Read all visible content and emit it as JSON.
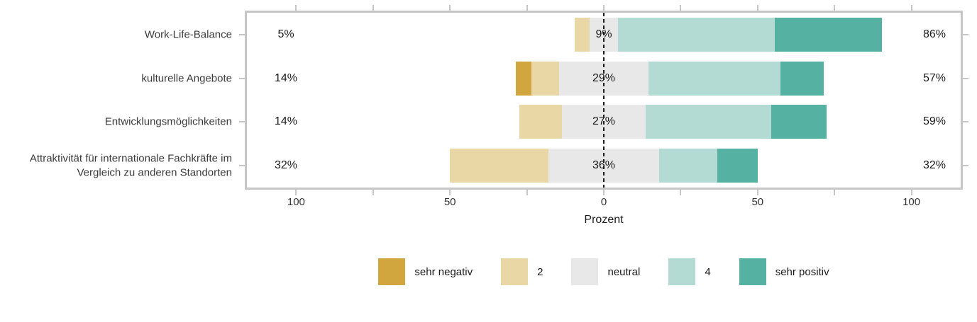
{
  "chart_data": {
    "type": "diverging_stacked_bar",
    "title": "",
    "xlabel": "Prozent",
    "xlim": [
      -116,
      116
    ],
    "x_ticks": [
      -100,
      -50,
      0,
      50,
      100
    ],
    "x_tick_labels": [
      "100",
      "50",
      "0",
      "50",
      "100"
    ],
    "minor_ticks": {
      "from": -100,
      "to": 100,
      "step": 25
    },
    "grid": false,
    "legend_position": "bottom",
    "levels": [
      {
        "key": "sehr-negativ",
        "label": "sehr negativ",
        "color": "#d2a63f"
      },
      {
        "key": "2",
        "label": "2",
        "color": "#e9d8a6"
      },
      {
        "key": "neutral",
        "label": "neutral",
        "color": "#e8e8e8"
      },
      {
        "key": "4",
        "label": "4",
        "color": "#b4dbd3"
      },
      {
        "key": "sehr-positiv",
        "label": "sehr positiv",
        "color": "#55b1a1"
      }
    ],
    "rows": [
      {
        "category": "Work-Life-Balance",
        "values": [
          0,
          5,
          9,
          51,
          35
        ],
        "left_label": "5%",
        "center_label": "9%",
        "right_label": "86%"
      },
      {
        "category": "kulturelle Angebote",
        "values": [
          5,
          9,
          29,
          43,
          14
        ],
        "left_label": "14%",
        "center_label": "29%",
        "right_label": "57%"
      },
      {
        "category": "Entwicklungsmöglichkeiten",
        "values": [
          0,
          14,
          27,
          41,
          18
        ],
        "left_label": "14%",
        "center_label": "27%",
        "right_label": "59%"
      },
      {
        "category": "Attraktivität für internationale Fachkräfte im Vergleich zu anderen Standorten",
        "values": [
          0,
          32,
          36,
          19,
          13
        ],
        "left_label": "32%",
        "center_label": "36%",
        "right_label": "32%"
      }
    ],
    "style": {
      "panel_border_color": "#c6c6c6",
      "zero_line_color": "#1a1a1a",
      "text_color": "#1a1a1a"
    }
  }
}
